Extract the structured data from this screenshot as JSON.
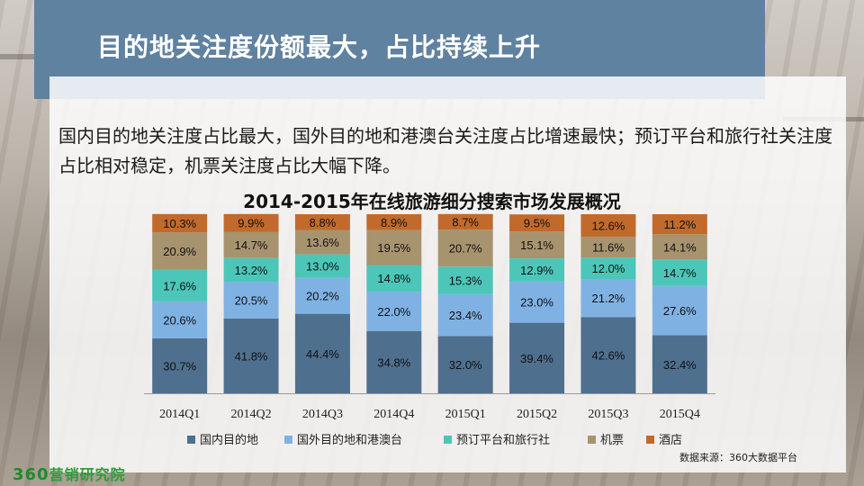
{
  "slide": {
    "title": "目的地关注度份额最大，占比持续上升",
    "description": "国内目的地关注度占比最大，国外目的地和港澳台关注度占比增速最快；预订平台和旅行社关注度占比相对稳定，机票关注度占比大幅下降。",
    "source": "数据来源：360大数据平台",
    "logo_number": "360",
    "logo_text": "营销研究院"
  },
  "chart_data": {
    "type": "bar",
    "stacked": true,
    "title": "2014-2015年在线旅游细分搜索市场发展概况",
    "categories": [
      "2014Q1",
      "2014Q2",
      "2014Q3",
      "2014Q4",
      "2015Q1",
      "2015Q2",
      "2015Q3",
      "2015Q4"
    ],
    "series": [
      {
        "name": "国内目的地",
        "color": "#4f6f8e",
        "values": [
          30.7,
          41.8,
          44.4,
          34.8,
          32.0,
          39.4,
          42.6,
          32.4
        ]
      },
      {
        "name": "国外目的地和港澳台",
        "color": "#7fb2e3",
        "values": [
          20.6,
          20.5,
          20.2,
          22.0,
          23.4,
          23.0,
          21.2,
          27.6
        ]
      },
      {
        "name": "预订平台和旅行社",
        "color": "#4cc6b8",
        "values": [
          17.6,
          13.2,
          13.0,
          14.8,
          15.3,
          12.9,
          12.0,
          14.7
        ]
      },
      {
        "name": "机票",
        "color": "#a8936f",
        "values": [
          20.9,
          14.7,
          13.6,
          19.5,
          20.7,
          15.1,
          11.6,
          14.1
        ]
      },
      {
        "name": "酒店",
        "color": "#c26a2c",
        "values": [
          10.3,
          9.9,
          8.8,
          8.9,
          8.7,
          9.5,
          12.6,
          11.2
        ]
      }
    ],
    "value_suffix": "%",
    "ylim": [
      0,
      100
    ],
    "legend_position": "bottom",
    "grid": false
  }
}
